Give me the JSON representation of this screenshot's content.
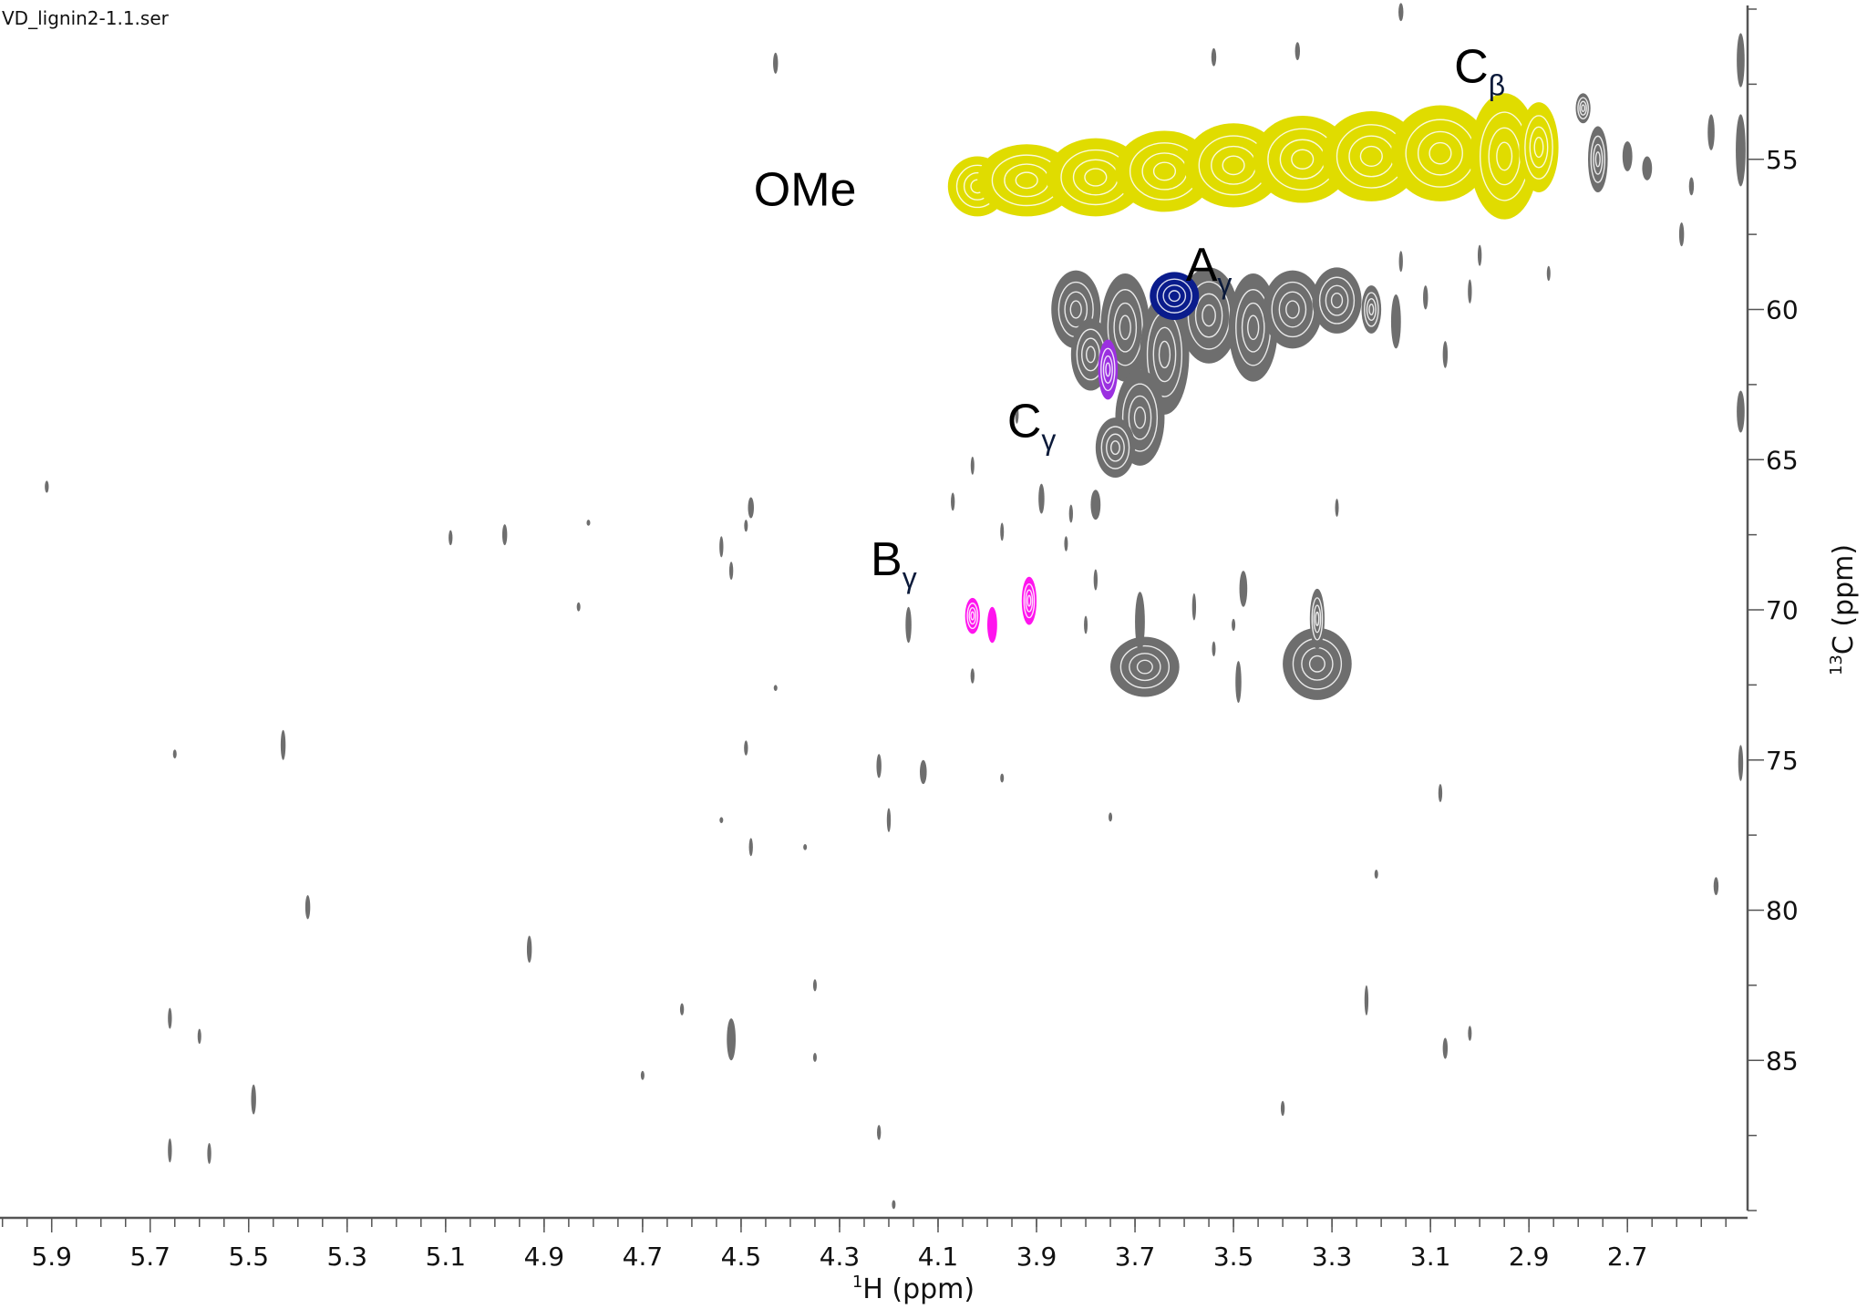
{
  "window_title": "VD_lignin2-1.1.ser",
  "chart_data": {
    "type": "heatmap",
    "subtype": "2D HSQC NMR contour plot",
    "x_axis": {
      "label_sup": "1",
      "label": "H (ppm)",
      "range": [
        6.005,
        2.456
      ],
      "reversed": true,
      "ticks": [
        5.9,
        5.7,
        5.5,
        5.3,
        5.1,
        4.9,
        4.7,
        4.5,
        4.3,
        4.1,
        3.9,
        3.7,
        3.5,
        3.3,
        3.1,
        2.9,
        2.7
      ],
      "minor_step": 0.05
    },
    "y_axis": {
      "label_sup": "13",
      "label": "C (ppm)",
      "range": [
        50,
        90
      ],
      "reversed": true,
      "position": "right",
      "ticks": [
        55,
        60,
        65,
        70,
        75,
        80,
        85
      ],
      "minor_step": 2.5
    },
    "grid": false,
    "colors": {
      "OMe": "#e0dc00",
      "A_gamma": "#0a1c8c",
      "C_gamma": "#9b30e0",
      "B_gamma": "#ff14ee",
      "other": "#6e6e6e"
    },
    "annotations": [
      {
        "base": "OMe",
        "sub": "",
        "h": 4.37,
        "c": 56.0
      },
      {
        "base": "C",
        "sub": "β",
        "h": 3.0,
        "c": 51.9
      },
      {
        "base": "A",
        "sub": "γ",
        "h": 3.55,
        "c": 58.5
      },
      {
        "base": "C",
        "sub": "γ",
        "h": 3.91,
        "c": 63.7
      },
      {
        "base": "B",
        "sub": "γ",
        "h": 4.19,
        "c": 68.3
      }
    ],
    "peaks": [
      {
        "group": "OMe",
        "h": 4.02,
        "c": 55.9,
        "dh": 0.06,
        "dc": 1.0
      },
      {
        "group": "OMe",
        "h": 3.92,
        "c": 55.7,
        "dh": 0.1,
        "dc": 1.2
      },
      {
        "group": "OMe",
        "h": 3.78,
        "c": 55.6,
        "dh": 0.1,
        "dc": 1.3
      },
      {
        "group": "OMe",
        "h": 3.64,
        "c": 55.4,
        "dh": 0.1,
        "dc": 1.35
      },
      {
        "group": "OMe",
        "h": 3.5,
        "c": 55.2,
        "dh": 0.1,
        "dc": 1.4
      },
      {
        "group": "OMe",
        "h": 3.36,
        "c": 55.0,
        "dh": 0.1,
        "dc": 1.45
      },
      {
        "group": "OMe",
        "h": 3.22,
        "c": 54.9,
        "dh": 0.1,
        "dc": 1.5
      },
      {
        "group": "OMe",
        "h": 3.08,
        "c": 54.8,
        "dh": 0.1,
        "dc": 1.6
      },
      {
        "group": "OMe",
        "h": 2.95,
        "c": 54.9,
        "dh": 0.07,
        "dc": 2.1
      },
      {
        "group": "OMe",
        "h": 2.88,
        "c": 54.6,
        "dh": 0.04,
        "dc": 1.5
      },
      {
        "group": "other",
        "h": 3.82,
        "c": 60.0,
        "dh": 0.05,
        "dc": 1.3
      },
      {
        "group": "other",
        "h": 3.72,
        "c": 60.6,
        "dh": 0.05,
        "dc": 1.8
      },
      {
        "group": "other",
        "h": 3.64,
        "c": 61.5,
        "dh": 0.05,
        "dc": 2.0
      },
      {
        "group": "other",
        "h": 3.55,
        "c": 60.2,
        "dh": 0.06,
        "dc": 1.6
      },
      {
        "group": "other",
        "h": 3.46,
        "c": 60.6,
        "dh": 0.05,
        "dc": 1.8
      },
      {
        "group": "other",
        "h": 3.38,
        "c": 60.0,
        "dh": 0.06,
        "dc": 1.3
      },
      {
        "group": "other",
        "h": 3.29,
        "c": 59.7,
        "dh": 0.05,
        "dc": 1.1
      },
      {
        "group": "other",
        "h": 3.22,
        "c": 60.0,
        "dh": 0.02,
        "dc": 0.8
      },
      {
        "group": "other",
        "h": 3.69,
        "c": 63.6,
        "dh": 0.05,
        "dc": 1.6
      },
      {
        "group": "other",
        "h": 3.74,
        "c": 64.6,
        "dh": 0.04,
        "dc": 1.0
      },
      {
        "group": "other",
        "h": 3.79,
        "c": 61.5,
        "dh": 0.04,
        "dc": 1.2
      },
      {
        "group": "A_gamma",
        "h": 3.62,
        "c": 59.55,
        "dh": 0.05,
        "dc": 0.8
      },
      {
        "group": "C_gamma",
        "h": 3.755,
        "c": 62.0,
        "dh": 0.02,
        "dc": 1.0
      },
      {
        "group": "B_gamma",
        "h": 4.03,
        "c": 70.2,
        "dh": 0.015,
        "dc": 0.6
      },
      {
        "group": "B_gamma",
        "h": 3.99,
        "c": 70.5,
        "dh": 0.01,
        "dc": 0.6
      },
      {
        "group": "B_gamma",
        "h": 3.915,
        "c": 69.7,
        "dh": 0.015,
        "dc": 0.8
      },
      {
        "group": "other",
        "h": 3.68,
        "c": 71.9,
        "dh": 0.07,
        "dc": 1.0
      },
      {
        "group": "other",
        "h": 3.69,
        "c": 70.4,
        "dh": 0.01,
        "dc": 1.0
      },
      {
        "group": "other",
        "h": 3.33,
        "c": 71.8,
        "dh": 0.07,
        "dc": 1.2
      },
      {
        "group": "other",
        "h": 3.33,
        "c": 70.3,
        "dh": 0.015,
        "dc": 1.0
      },
      {
        "group": "other",
        "h": 4.43,
        "c": 51.8,
        "dh": 0.005,
        "dc": 0.35
      },
      {
        "group": "other",
        "h": 3.54,
        "c": 51.6,
        "dh": 0.005,
        "dc": 0.3
      },
      {
        "group": "other",
        "h": 3.37,
        "c": 51.4,
        "dh": 0.005,
        "dc": 0.3
      },
      {
        "group": "other",
        "h": 3.16,
        "c": 50.1,
        "dh": 0.005,
        "dc": 0.3
      },
      {
        "group": "other",
        "h": 2.79,
        "c": 53.3,
        "dh": 0.015,
        "dc": 0.5
      },
      {
        "group": "other",
        "h": 2.76,
        "c": 55.0,
        "dh": 0.02,
        "dc": 1.1
      },
      {
        "group": "other",
        "h": 2.7,
        "c": 54.9,
        "dh": 0.01,
        "dc": 0.5
      },
      {
        "group": "other",
        "h": 2.66,
        "c": 55.3,
        "dh": 0.01,
        "dc": 0.4
      },
      {
        "group": "other",
        "h": 2.59,
        "c": 57.5,
        "dh": 0.005,
        "dc": 0.4
      },
      {
        "group": "other",
        "h": 2.57,
        "c": 55.9,
        "dh": 0.005,
        "dc": 0.3
      },
      {
        "group": "other",
        "h": 2.53,
        "c": 54.1,
        "dh": 0.007,
        "dc": 0.6
      },
      {
        "group": "other",
        "h": 2.47,
        "c": 51.7,
        "dh": 0.008,
        "dc": 0.9
      },
      {
        "group": "other",
        "h": 2.47,
        "c": 54.7,
        "dh": 0.01,
        "dc": 1.2
      },
      {
        "group": "other",
        "h": 2.47,
        "c": 63.4,
        "dh": 0.008,
        "dc": 0.7
      },
      {
        "group": "other",
        "h": 2.47,
        "c": 75.1,
        "dh": 0.005,
        "dc": 0.6
      },
      {
        "group": "other",
        "h": 2.52,
        "c": 79.2,
        "dh": 0.005,
        "dc": 0.3
      },
      {
        "group": "other",
        "h": 5.91,
        "c": 65.9,
        "dh": 0.004,
        "dc": 0.2
      },
      {
        "group": "other",
        "h": 5.09,
        "c": 67.6,
        "dh": 0.004,
        "dc": 0.25
      },
      {
        "group": "other",
        "h": 4.98,
        "c": 67.5,
        "dh": 0.005,
        "dc": 0.35
      },
      {
        "group": "other",
        "h": 4.81,
        "c": 67.1,
        "dh": 0.003,
        "dc": 0.1
      },
      {
        "group": "other",
        "h": 4.83,
        "c": 69.9,
        "dh": 0.003,
        "dc": 0.15
      },
      {
        "group": "other",
        "h": 4.48,
        "c": 66.6,
        "dh": 0.006,
        "dc": 0.35
      },
      {
        "group": "other",
        "h": 4.49,
        "c": 67.2,
        "dh": 0.003,
        "dc": 0.2
      },
      {
        "group": "other",
        "h": 4.54,
        "c": 67.9,
        "dh": 0.004,
        "dc": 0.35
      },
      {
        "group": "other",
        "h": 4.52,
        "c": 68.7,
        "dh": 0.004,
        "dc": 0.3
      },
      {
        "group": "other",
        "h": 4.16,
        "c": 70.5,
        "dh": 0.006,
        "dc": 0.6
      },
      {
        "group": "other",
        "h": 4.03,
        "c": 72.2,
        "dh": 0.004,
        "dc": 0.25
      },
      {
        "group": "other",
        "h": 3.94,
        "c": 63.5,
        "dh": 0.003,
        "dc": 0.3
      },
      {
        "group": "other",
        "h": 4.03,
        "c": 65.2,
        "dh": 0.003,
        "dc": 0.3
      },
      {
        "group": "other",
        "h": 4.07,
        "c": 66.4,
        "dh": 0.004,
        "dc": 0.3
      },
      {
        "group": "other",
        "h": 3.97,
        "c": 67.4,
        "dh": 0.003,
        "dc": 0.3
      },
      {
        "group": "other",
        "h": 3.89,
        "c": 66.3,
        "dh": 0.006,
        "dc": 0.5
      },
      {
        "group": "other",
        "h": 3.83,
        "c": 66.8,
        "dh": 0.004,
        "dc": 0.3
      },
      {
        "group": "other",
        "h": 3.78,
        "c": 66.5,
        "dh": 0.01,
        "dc": 0.5
      },
      {
        "group": "other",
        "h": 3.84,
        "c": 67.8,
        "dh": 0.003,
        "dc": 0.25
      },
      {
        "group": "other",
        "h": 3.78,
        "c": 69.0,
        "dh": 0.004,
        "dc": 0.35
      },
      {
        "group": "other",
        "h": 3.8,
        "c": 70.5,
        "dh": 0.003,
        "dc": 0.3
      },
      {
        "group": "other",
        "h": 3.48,
        "c": 69.3,
        "dh": 0.008,
        "dc": 0.6
      },
      {
        "group": "other",
        "h": 3.5,
        "c": 70.5,
        "dh": 0.003,
        "dc": 0.2
      },
      {
        "group": "other",
        "h": 3.54,
        "c": 71.3,
        "dh": 0.003,
        "dc": 0.25
      },
      {
        "group": "other",
        "h": 3.49,
        "c": 72.4,
        "dh": 0.006,
        "dc": 0.7
      },
      {
        "group": "other",
        "h": 3.58,
        "c": 69.9,
        "dh": 0.004,
        "dc": 0.45
      },
      {
        "group": "other",
        "h": 3.29,
        "c": 66.6,
        "dh": 0.003,
        "dc": 0.3
      },
      {
        "group": "other",
        "h": 3.17,
        "c": 60.4,
        "dh": 0.01,
        "dc": 0.9
      },
      {
        "group": "other",
        "h": 3.11,
        "c": 59.6,
        "dh": 0.005,
        "dc": 0.4
      },
      {
        "group": "other",
        "h": 3.07,
        "c": 61.5,
        "dh": 0.005,
        "dc": 0.45
      },
      {
        "group": "other",
        "h": 3.0,
        "c": 58.2,
        "dh": 0.004,
        "dc": 0.35
      },
      {
        "group": "other",
        "h": 3.02,
        "c": 59.4,
        "dh": 0.004,
        "dc": 0.4
      },
      {
        "group": "other",
        "h": 2.86,
        "c": 58.8,
        "dh": 0.003,
        "dc": 0.25
      },
      {
        "group": "other",
        "h": 3.16,
        "c": 58.4,
        "dh": 0.004,
        "dc": 0.35
      },
      {
        "group": "other",
        "h": 3.23,
        "c": 83.0,
        "dh": 0.004,
        "dc": 0.5
      },
      {
        "group": "other",
        "h": 3.21,
        "c": 78.8,
        "dh": 0.003,
        "dc": 0.15
      },
      {
        "group": "other",
        "h": 3.08,
        "c": 76.1,
        "dh": 0.004,
        "dc": 0.3
      },
      {
        "group": "other",
        "h": 3.07,
        "c": 84.6,
        "dh": 0.005,
        "dc": 0.35
      },
      {
        "group": "other",
        "h": 3.02,
        "c": 84.1,
        "dh": 0.003,
        "dc": 0.25
      },
      {
        "group": "other",
        "h": 3.4,
        "c": 86.6,
        "dh": 0.004,
        "dc": 0.25
      },
      {
        "group": "other",
        "h": 4.19,
        "c": 89.8,
        "dh": 0.003,
        "dc": 0.15
      },
      {
        "group": "other",
        "h": 4.22,
        "c": 87.4,
        "dh": 0.004,
        "dc": 0.25
      },
      {
        "group": "other",
        "h": 4.22,
        "c": 75.2,
        "dh": 0.005,
        "dc": 0.4
      },
      {
        "group": "other",
        "h": 4.2,
        "c": 77.0,
        "dh": 0.004,
        "dc": 0.4
      },
      {
        "group": "other",
        "h": 4.13,
        "c": 75.4,
        "dh": 0.007,
        "dc": 0.4
      },
      {
        "group": "other",
        "h": 3.97,
        "c": 75.6,
        "dh": 0.003,
        "dc": 0.15
      },
      {
        "group": "other",
        "h": 3.75,
        "c": 76.9,
        "dh": 0.003,
        "dc": 0.15
      },
      {
        "group": "other",
        "h": 4.49,
        "c": 74.6,
        "dh": 0.004,
        "dc": 0.25
      },
      {
        "group": "other",
        "h": 4.48,
        "c": 77.9,
        "dh": 0.004,
        "dc": 0.3
      },
      {
        "group": "other",
        "h": 4.54,
        "c": 77.0,
        "dh": 0.003,
        "dc": 0.1
      },
      {
        "group": "other",
        "h": 4.37,
        "c": 77.9,
        "dh": 0.003,
        "dc": 0.1
      },
      {
        "group": "other",
        "h": 4.43,
        "c": 72.6,
        "dh": 0.003,
        "dc": 0.1
      },
      {
        "group": "other",
        "h": 4.35,
        "c": 82.5,
        "dh": 0.003,
        "dc": 0.2
      },
      {
        "group": "other",
        "h": 4.35,
        "c": 84.9,
        "dh": 0.003,
        "dc": 0.15
      },
      {
        "group": "other",
        "h": 4.62,
        "c": 83.3,
        "dh": 0.004,
        "dc": 0.2
      },
      {
        "group": "other",
        "h": 4.7,
        "c": 85.5,
        "dh": 0.003,
        "dc": 0.15
      },
      {
        "group": "other",
        "h": 4.52,
        "c": 84.3,
        "dh": 0.009,
        "dc": 0.7
      },
      {
        "group": "other",
        "h": 4.93,
        "c": 81.3,
        "dh": 0.005,
        "dc": 0.45
      },
      {
        "group": "other",
        "h": 5.38,
        "c": 79.9,
        "dh": 0.005,
        "dc": 0.4
      },
      {
        "group": "other",
        "h": 5.43,
        "c": 74.5,
        "dh": 0.005,
        "dc": 0.5
      },
      {
        "group": "other",
        "h": 5.65,
        "c": 74.8,
        "dh": 0.003,
        "dc": 0.15
      },
      {
        "group": "other",
        "h": 5.66,
        "c": 83.6,
        "dh": 0.004,
        "dc": 0.35
      },
      {
        "group": "other",
        "h": 5.6,
        "c": 84.2,
        "dh": 0.003,
        "dc": 0.25
      },
      {
        "group": "other",
        "h": 5.66,
        "c": 88.0,
        "dh": 0.004,
        "dc": 0.4
      },
      {
        "group": "other",
        "h": 5.58,
        "c": 88.1,
        "dh": 0.004,
        "dc": 0.35
      },
      {
        "group": "other",
        "h": 5.49,
        "c": 86.3,
        "dh": 0.005,
        "dc": 0.5
      }
    ]
  }
}
